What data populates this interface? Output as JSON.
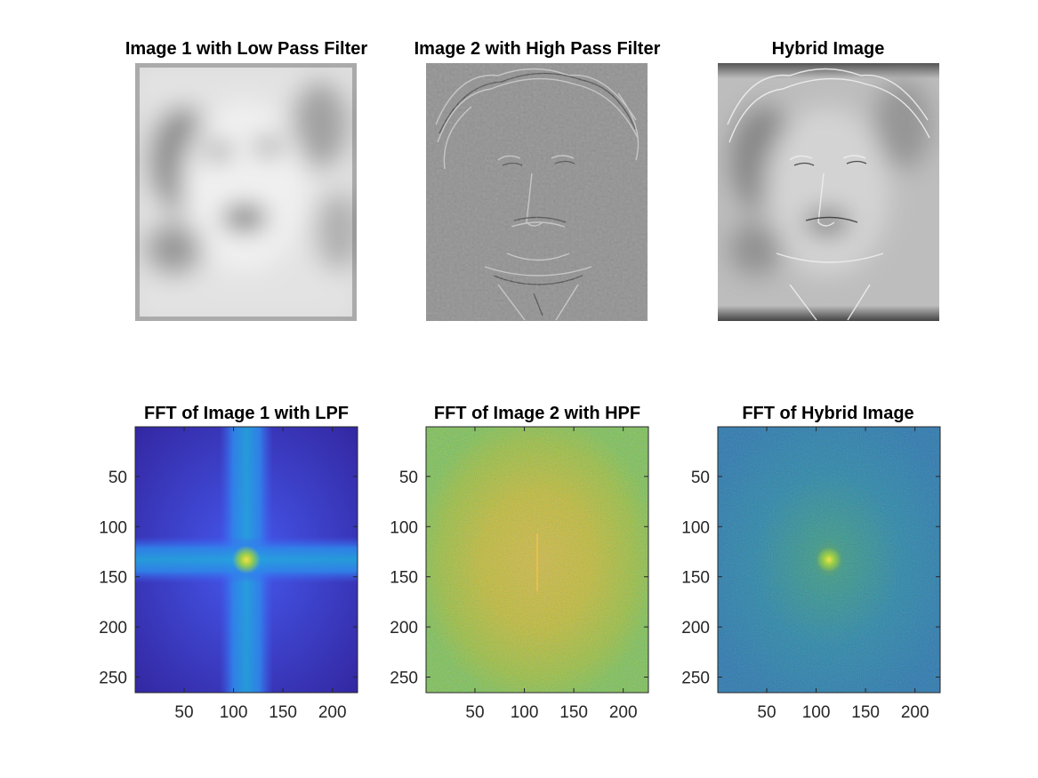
{
  "figure": {
    "background": "#ffffff"
  },
  "images": [
    {
      "title": "Image 1 with Low Pass Filter",
      "colormap": "gray",
      "content": "low-pass filtered portrait (blurred face)"
    },
    {
      "title": "Image 2 with High Pass Filter",
      "colormap": "gray",
      "content": "high-pass filtered portrait (edges only)"
    },
    {
      "title": "Hybrid Image",
      "colormap": "gray",
      "content": "sum of low-pass and high-pass images"
    }
  ],
  "chart_data": [
    {
      "type": "heatmap",
      "title": "FFT of Image 1 with LPF",
      "colormap": "parula",
      "xlim": [
        0.5,
        225.5
      ],
      "ylim": [
        0.5,
        265.5
      ],
      "y_reversed": true,
      "xticks": [
        50,
        100,
        150,
        200
      ],
      "yticks": [
        50,
        100,
        150,
        200,
        250
      ],
      "peak": {
        "x": 113,
        "y": 133
      },
      "pattern": "cross"
    },
    {
      "type": "heatmap",
      "title": "FFT of Image 2 with HPF",
      "colormap": "parula",
      "xlim": [
        0.5,
        225.5
      ],
      "ylim": [
        0.5,
        265.5
      ],
      "y_reversed": true,
      "xticks": [
        50,
        100,
        150,
        200
      ],
      "yticks": [
        50,
        100,
        150,
        200,
        250
      ],
      "peak": {
        "x": 113,
        "y": 133
      },
      "pattern": "noise-high"
    },
    {
      "type": "heatmap",
      "title": "FFT of Hybrid Image",
      "colormap": "parula",
      "xlim": [
        0.5,
        225.5
      ],
      "ylim": [
        0.5,
        265.5
      ],
      "y_reversed": true,
      "xticks": [
        50,
        100,
        150,
        200
      ],
      "yticks": [
        50,
        100,
        150,
        200,
        250
      ],
      "peak": {
        "x": 113,
        "y": 133
      },
      "pattern": "noise-mid"
    }
  ]
}
